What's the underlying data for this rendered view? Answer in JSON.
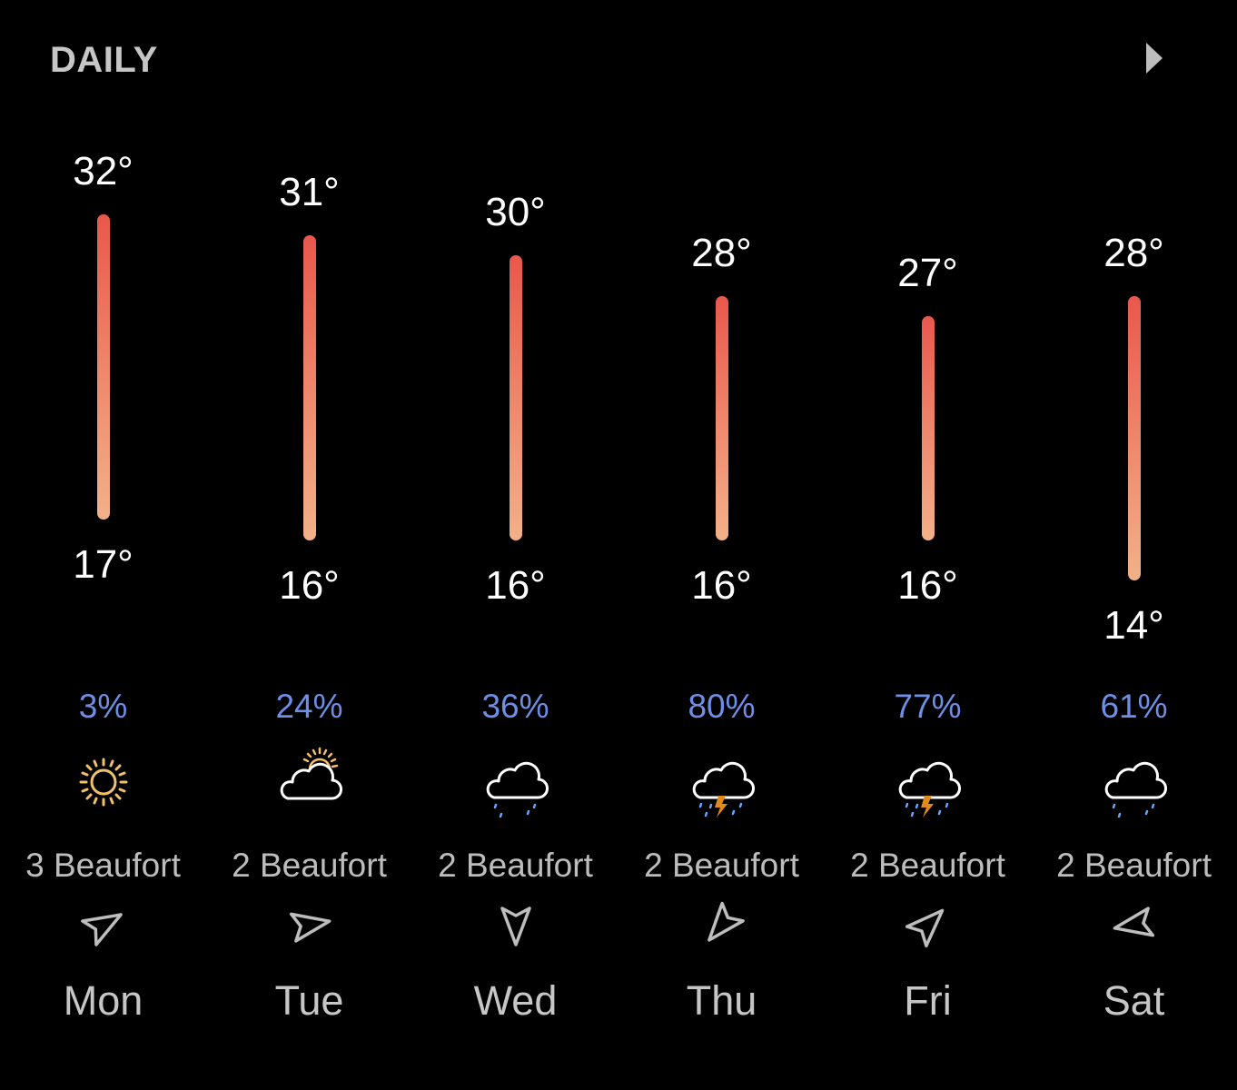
{
  "header": {
    "title": "DAILY",
    "expand_icon": "triangle-right-icon"
  },
  "days": [
    {
      "name": "Mon",
      "high": "32°",
      "low": "17°",
      "precip": "3%",
      "wind": "3 Beaufort",
      "icon": "sun-icon",
      "wind_direction_deg": 60
    },
    {
      "name": "Tue",
      "high": "31°",
      "low": "16°",
      "precip": "24%",
      "wind": "2 Beaufort",
      "icon": "partly-cloudy-icon",
      "wind_direction_deg": 80
    },
    {
      "name": "Wed",
      "high": "30°",
      "low": "16°",
      "precip": "36%",
      "wind": "2 Beaufort",
      "icon": "rain-cloud-icon",
      "wind_direction_deg": 180
    },
    {
      "name": "Thu",
      "high": "28°",
      "low": "16°",
      "precip": "80%",
      "wind": "2 Beaufort",
      "icon": "thunderstorm-icon",
      "wind_direction_deg": 220
    },
    {
      "name": "Fri",
      "high": "27°",
      "low": "16°",
      "precip": "77%",
      "wind": "2 Beaufort",
      "icon": "thunderstorm-icon",
      "wind_direction_deg": 45
    },
    {
      "name": "Sat",
      "high": "28°",
      "low": "14°",
      "precip": "61%",
      "wind": "2 Beaufort",
      "icon": "rain-cloud-icon",
      "wind_direction_deg": 260
    }
  ],
  "colors": {
    "background": "#000000",
    "bar_top": "#e9574c",
    "bar_bottom": "#f2b188",
    "precip": "#6f8ee6",
    "secondary_text": "#c6c6c6",
    "sun": "#f1c16a",
    "lightning": "#e08a1e",
    "raindrop": "#6aa5ff"
  }
}
